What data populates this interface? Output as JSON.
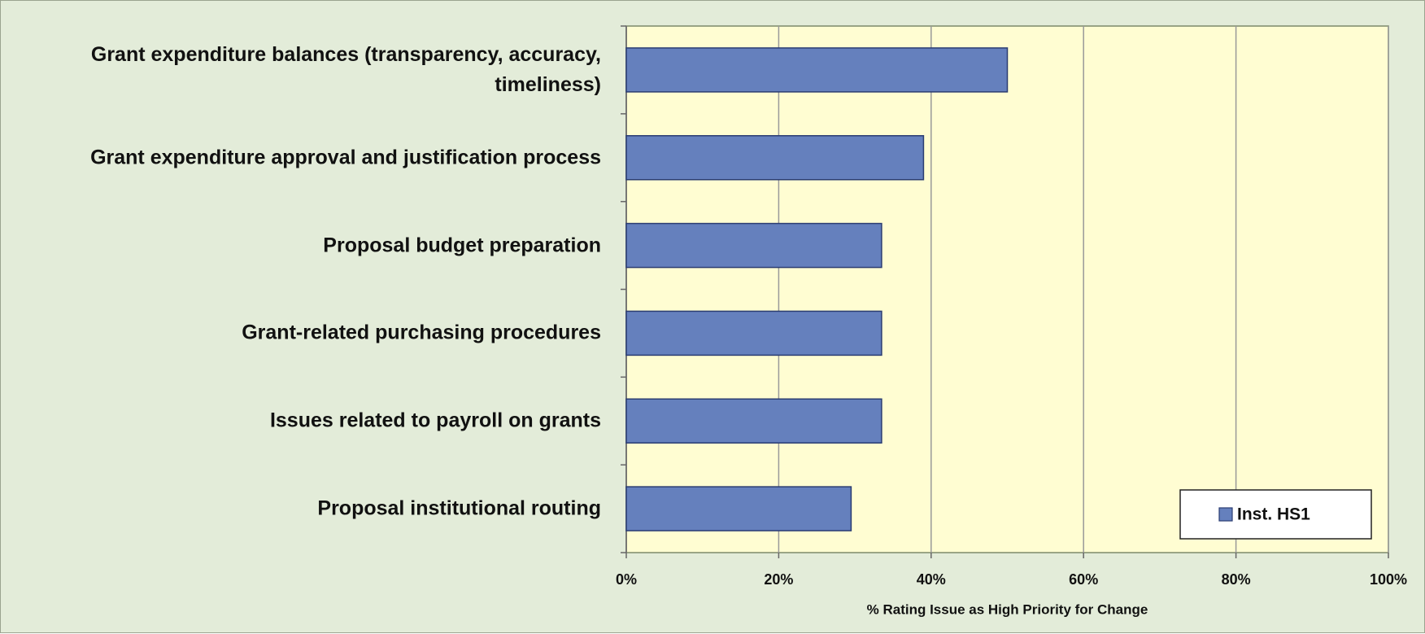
{
  "chart_data": {
    "type": "bar",
    "orientation": "horizontal",
    "categories": [
      "Grant expenditure balances (transparency, accuracy, timeliness)",
      "Grant expenditure approval and justification process",
      "Proposal budget preparation",
      "Grant-related purchasing procedures",
      "Issues related to payroll on grants",
      "Proposal institutional routing"
    ],
    "series": [
      {
        "name": "Inst. HS1",
        "color": "#6580bd",
        "values": [
          50,
          39,
          33.5,
          33.5,
          33.5,
          29.5
        ]
      }
    ],
    "xlabel": "% Rating Issue as High Priority for Change",
    "xlim": [
      0,
      100
    ],
    "xticks": [
      {
        "value": 0,
        "label": "0%"
      },
      {
        "value": 20,
        "label": "20%"
      },
      {
        "value": 40,
        "label": "40%"
      },
      {
        "value": 60,
        "label": "60%"
      },
      {
        "value": 80,
        "label": "80%"
      },
      {
        "value": 100,
        "label": "100%"
      }
    ],
    "grid": true,
    "legend": "lower right"
  }
}
